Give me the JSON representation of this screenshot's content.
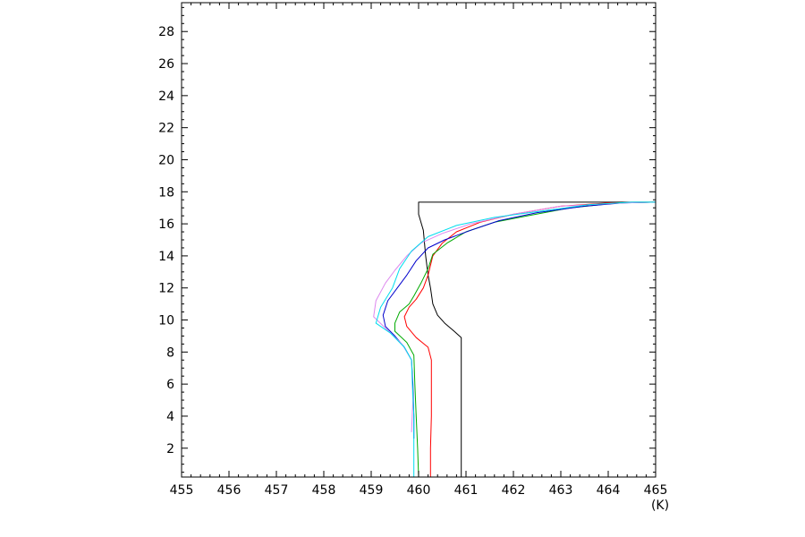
{
  "chart_data": {
    "type": "line",
    "title": "",
    "xlabel": "(K)",
    "ylabel": "",
    "xlim": [
      455,
      465
    ],
    "ylim": [
      0.2,
      29.8
    ],
    "x_ticks": [
      "455",
      "456",
      "457",
      "458",
      "459",
      "460",
      "461",
      "462",
      "463",
      "464",
      "465"
    ],
    "y_ticks": [
      "2",
      "4",
      "6",
      "8",
      "10",
      "12",
      "14",
      "16",
      "18",
      "20",
      "22",
      "24",
      "26",
      "28"
    ],
    "grid": false,
    "legend": "none",
    "series": [
      {
        "color": "#000000",
        "points": [
          [
            460.9,
            0.2
          ],
          [
            460.9,
            2
          ],
          [
            460.9,
            4
          ],
          [
            460.9,
            6
          ],
          [
            460.9,
            8
          ],
          [
            460.9,
            8.9
          ],
          [
            460.75,
            9.3
          ],
          [
            460.55,
            9.8
          ],
          [
            460.4,
            10.3
          ],
          [
            460.3,
            11
          ],
          [
            460.25,
            12
          ],
          [
            460.2,
            12.8
          ],
          [
            460.15,
            14
          ],
          [
            460.1,
            15.6
          ],
          [
            460.0,
            16.6
          ],
          [
            460.0,
            17.35
          ],
          [
            465,
            17.35
          ]
        ]
      },
      {
        "color": "#ff0000",
        "points": [
          [
            460.25,
            0.2
          ],
          [
            460.25,
            2
          ],
          [
            460.27,
            4
          ],
          [
            460.27,
            6
          ],
          [
            460.27,
            7.5
          ],
          [
            460.2,
            8.3
          ],
          [
            459.95,
            8.9
          ],
          [
            459.75,
            9.6
          ],
          [
            459.7,
            10.2
          ],
          [
            459.8,
            10.8
          ],
          [
            459.95,
            11.3
          ],
          [
            460.1,
            12
          ],
          [
            460.2,
            12.8
          ],
          [
            460.3,
            14
          ],
          [
            460.5,
            14.8
          ],
          [
            460.8,
            15.5
          ],
          [
            461.3,
            16.1
          ],
          [
            462,
            16.6
          ],
          [
            463,
            17.1
          ],
          [
            464,
            17.3
          ],
          [
            465,
            17.35
          ]
        ]
      },
      {
        "color": "#00aa00",
        "points": [
          [
            460.0,
            0.2
          ],
          [
            459.98,
            2
          ],
          [
            459.95,
            4
          ],
          [
            459.92,
            6
          ],
          [
            459.9,
            7.8
          ],
          [
            459.75,
            8.6
          ],
          [
            459.5,
            9.3
          ],
          [
            459.5,
            9.8
          ],
          [
            459.6,
            10.5
          ],
          [
            459.8,
            11
          ],
          [
            459.9,
            11.5
          ],
          [
            460.05,
            12.3
          ],
          [
            460.2,
            13.2
          ],
          [
            460.3,
            14.1
          ],
          [
            460.6,
            14.8
          ],
          [
            461,
            15.5
          ],
          [
            461.6,
            16.1
          ],
          [
            462.3,
            16.5
          ],
          [
            463.2,
            17.0
          ],
          [
            464.2,
            17.3
          ],
          [
            465,
            17.35
          ]
        ]
      },
      {
        "color": "#0000cc",
        "points": [
          [
            459.9,
            2.6
          ],
          [
            459.9,
            4
          ],
          [
            459.88,
            6
          ],
          [
            459.85,
            7.5
          ],
          [
            459.7,
            8.3
          ],
          [
            459.5,
            9.0
          ],
          [
            459.3,
            9.6
          ],
          [
            459.25,
            10.3
          ],
          [
            459.35,
            11.2
          ],
          [
            459.55,
            12
          ],
          [
            459.75,
            12.8
          ],
          [
            459.95,
            13.7
          ],
          [
            460.2,
            14.5
          ],
          [
            460.55,
            15
          ],
          [
            461.1,
            15.6
          ],
          [
            461.7,
            16.2
          ],
          [
            462.5,
            16.7
          ],
          [
            463.5,
            17.1
          ],
          [
            464.3,
            17.3
          ],
          [
            465,
            17.35
          ]
        ]
      },
      {
        "color": "#dd88ee",
        "points": [
          [
            459.85,
            3
          ],
          [
            459.88,
            5
          ],
          [
            459.85,
            7.5
          ],
          [
            459.65,
            8.5
          ],
          [
            459.3,
            9.5
          ],
          [
            459.05,
            10.2
          ],
          [
            459.1,
            11.2
          ],
          [
            459.3,
            12.3
          ],
          [
            459.5,
            13.1
          ],
          [
            459.75,
            14
          ],
          [
            460.05,
            14.8
          ],
          [
            460.5,
            15.4
          ],
          [
            461.1,
            16
          ],
          [
            462,
            16.6
          ],
          [
            463,
            17.1
          ],
          [
            464.3,
            17.3
          ],
          [
            465,
            17.35
          ]
        ]
      },
      {
        "color": "#00ddee",
        "points": [
          [
            459.9,
            0.2
          ],
          [
            459.9,
            2
          ],
          [
            459.9,
            4
          ],
          [
            459.87,
            6
          ],
          [
            459.85,
            7.5
          ],
          [
            459.7,
            8.3
          ],
          [
            459.4,
            9.2
          ],
          [
            459.1,
            9.8
          ],
          [
            459.2,
            10.8
          ],
          [
            459.45,
            12
          ],
          [
            459.6,
            13.2
          ],
          [
            459.85,
            14.3
          ],
          [
            460.2,
            15.2
          ],
          [
            460.8,
            15.9
          ],
          [
            461.6,
            16.4
          ],
          [
            462.6,
            16.8
          ],
          [
            463.6,
            17.2
          ],
          [
            464.5,
            17.35
          ],
          [
            465,
            17.35
          ]
        ]
      }
    ]
  }
}
